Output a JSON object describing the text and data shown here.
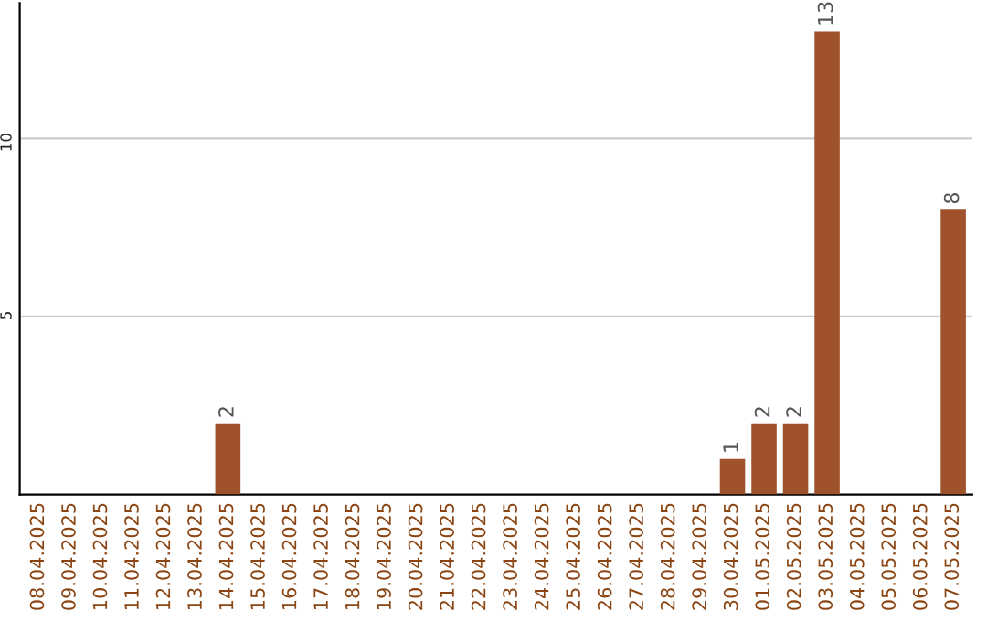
{
  "chart_data": {
    "type": "bar",
    "categories": [
      "08.04.2025",
      "09.04.2025",
      "10.04.2025",
      "11.04.2025",
      "12.04.2025",
      "13.04.2025",
      "14.04.2025",
      "15.04.2025",
      "16.04.2025",
      "17.04.2025",
      "18.04.2025",
      "19.04.2025",
      "20.04.2025",
      "21.04.2025",
      "22.04.2025",
      "23.04.2025",
      "24.04.2025",
      "25.04.2025",
      "26.04.2025",
      "27.04.2025",
      "28.04.2025",
      "29.04.2025",
      "30.04.2025",
      "01.05.2025",
      "02.05.2025",
      "03.05.2025",
      "04.05.2025",
      "05.05.2025",
      "06.05.2025",
      "07.05.2025"
    ],
    "values": [
      0,
      0,
      0,
      0,
      0,
      0,
      2,
      0,
      0,
      0,
      0,
      0,
      0,
      0,
      0,
      0,
      0,
      0,
      0,
      0,
      0,
      0,
      1,
      2,
      2,
      13,
      0,
      0,
      0,
      8
    ],
    "value_labels": [
      null,
      null,
      null,
      null,
      null,
      null,
      "2",
      null,
      null,
      null,
      null,
      null,
      null,
      null,
      null,
      null,
      null,
      null,
      null,
      null,
      null,
      null,
      "1",
      "2",
      "2",
      "13",
      null,
      null,
      null,
      "8"
    ],
    "color": "#a0522d",
    "ylim": [
      0,
      13.8
    ],
    "yticks": [
      5,
      10
    ],
    "grid": "y"
  }
}
